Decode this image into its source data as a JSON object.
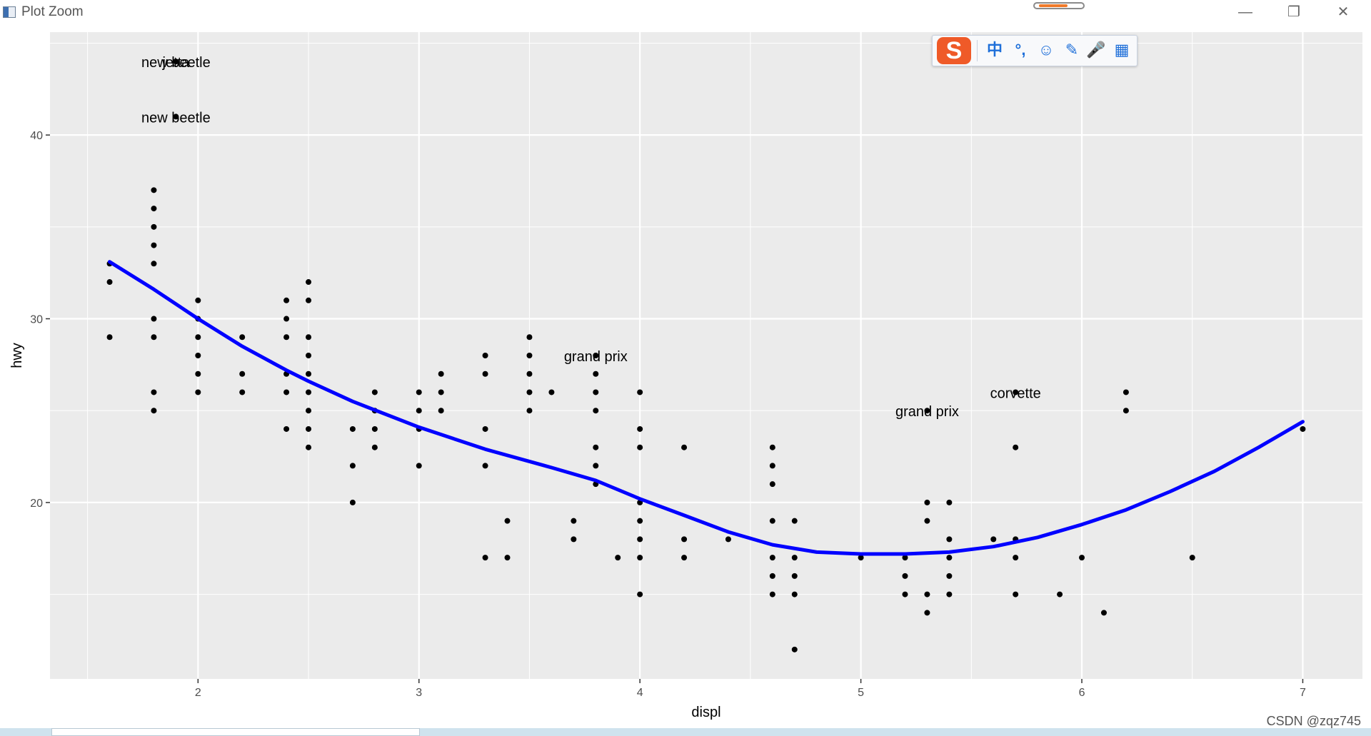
{
  "window": {
    "title": "Plot Zoom",
    "minimize_icon": "minimize-icon",
    "restore_icon": "restore-icon",
    "close_icon": "close-icon"
  },
  "ime_toolbar": {
    "logo": "S",
    "items": [
      "中",
      "°,",
      "☺",
      "✎",
      "🎤",
      "▦"
    ]
  },
  "watermark": "CSDN @zqz745",
  "chart_data": {
    "type": "scatter",
    "title": "",
    "xlabel": "displ",
    "ylabel": "hwy",
    "xlim": [
      1.33,
      7.27
    ],
    "ylim": [
      10.4,
      45.6
    ],
    "x_ticks": [
      2,
      3,
      4,
      5,
      6,
      7
    ],
    "y_ticks": [
      20,
      30,
      40
    ],
    "grid": true,
    "legend": "none",
    "colors": {
      "panel": "#ebebeb",
      "grid": "#ffffff",
      "point": "#000000",
      "smooth": "#0000ff"
    },
    "points": [
      [
        1.6,
        33
      ],
      [
        1.6,
        32
      ],
      [
        1.6,
        29
      ],
      [
        1.8,
        37
      ],
      [
        1.8,
        36
      ],
      [
        1.8,
        35
      ],
      [
        1.8,
        34
      ],
      [
        1.8,
        33
      ],
      [
        1.8,
        30
      ],
      [
        1.8,
        29
      ],
      [
        1.8,
        26
      ],
      [
        1.8,
        25
      ],
      [
        1.9,
        44
      ],
      [
        1.9,
        41
      ],
      [
        2.0,
        31
      ],
      [
        2.0,
        30
      ],
      [
        2.0,
        29
      ],
      [
        2.0,
        28
      ],
      [
        2.0,
        27
      ],
      [
        2.0,
        26
      ],
      [
        2.2,
        29
      ],
      [
        2.2,
        27
      ],
      [
        2.2,
        26
      ],
      [
        2.4,
        31
      ],
      [
        2.4,
        30
      ],
      [
        2.4,
        29
      ],
      [
        2.4,
        27
      ],
      [
        2.4,
        26
      ],
      [
        2.4,
        24
      ],
      [
        2.5,
        32
      ],
      [
        2.5,
        31
      ],
      [
        2.5,
        29
      ],
      [
        2.5,
        28
      ],
      [
        2.5,
        27
      ],
      [
        2.5,
        26
      ],
      [
        2.5,
        25
      ],
      [
        2.5,
        24
      ],
      [
        2.5,
        23
      ],
      [
        2.7,
        24
      ],
      [
        2.7,
        22
      ],
      [
        2.7,
        20
      ],
      [
        2.8,
        26
      ],
      [
        2.8,
        25
      ],
      [
        2.8,
        24
      ],
      [
        2.8,
        23
      ],
      [
        3.0,
        26
      ],
      [
        3.0,
        25
      ],
      [
        3.0,
        24
      ],
      [
        3.0,
        22
      ],
      [
        3.1,
        27
      ],
      [
        3.1,
        26
      ],
      [
        3.1,
        25
      ],
      [
        3.3,
        28
      ],
      [
        3.3,
        27
      ],
      [
        3.3,
        24
      ],
      [
        3.3,
        22
      ],
      [
        3.3,
        17
      ],
      [
        3.4,
        19
      ],
      [
        3.4,
        17
      ],
      [
        3.5,
        29
      ],
      [
        3.5,
        28
      ],
      [
        3.5,
        27
      ],
      [
        3.5,
        26
      ],
      [
        3.5,
        25
      ],
      [
        3.6,
        26
      ],
      [
        3.7,
        19
      ],
      [
        3.7,
        18
      ],
      [
        3.8,
        28
      ],
      [
        3.8,
        27
      ],
      [
        3.8,
        26
      ],
      [
        3.8,
        25
      ],
      [
        3.8,
        23
      ],
      [
        3.8,
        22
      ],
      [
        3.8,
        21
      ],
      [
        3.9,
        17
      ],
      [
        4.0,
        26
      ],
      [
        4.0,
        24
      ],
      [
        4.0,
        23
      ],
      [
        4.0,
        20
      ],
      [
        4.0,
        19
      ],
      [
        4.0,
        18
      ],
      [
        4.0,
        17
      ],
      [
        4.0,
        15
      ],
      [
        4.2,
        23
      ],
      [
        4.2,
        18
      ],
      [
        4.2,
        17
      ],
      [
        4.4,
        18
      ],
      [
        4.6,
        23
      ],
      [
        4.6,
        22
      ],
      [
        4.6,
        21
      ],
      [
        4.6,
        19
      ],
      [
        4.6,
        17
      ],
      [
        4.6,
        16
      ],
      [
        4.6,
        15
      ],
      [
        4.7,
        19
      ],
      [
        4.7,
        17
      ],
      [
        4.7,
        16
      ],
      [
        4.7,
        15
      ],
      [
        4.7,
        12
      ],
      [
        5.0,
        17
      ],
      [
        5.2,
        17
      ],
      [
        5.2,
        16
      ],
      [
        5.2,
        15
      ],
      [
        5.3,
        25
      ],
      [
        5.3,
        20
      ],
      [
        5.3,
        19
      ],
      [
        5.3,
        15
      ],
      [
        5.3,
        14
      ],
      [
        5.4,
        20
      ],
      [
        5.4,
        18
      ],
      [
        5.4,
        17
      ],
      [
        5.4,
        16
      ],
      [
        5.4,
        15
      ],
      [
        5.6,
        18
      ],
      [
        5.7,
        26
      ],
      [
        5.7,
        23
      ],
      [
        5.7,
        18
      ],
      [
        5.7,
        17
      ],
      [
        5.7,
        15
      ],
      [
        5.9,
        15
      ],
      [
        6.0,
        17
      ],
      [
        6.1,
        14
      ],
      [
        6.2,
        26
      ],
      [
        6.2,
        25
      ],
      [
        6.5,
        17
      ],
      [
        7.0,
        24
      ]
    ],
    "smooth": [
      [
        1.6,
        33.1
      ],
      [
        1.8,
        31.6
      ],
      [
        2.0,
        30.0
      ],
      [
        2.2,
        28.5
      ],
      [
        2.4,
        27.2
      ],
      [
        2.5,
        26.6
      ],
      [
        2.7,
        25.5
      ],
      [
        3.0,
        24.1
      ],
      [
        3.3,
        22.9
      ],
      [
        3.6,
        21.9
      ],
      [
        3.8,
        21.2
      ],
      [
        4.0,
        20.2
      ],
      [
        4.2,
        19.3
      ],
      [
        4.4,
        18.4
      ],
      [
        4.6,
        17.7
      ],
      [
        4.8,
        17.3
      ],
      [
        5.0,
        17.2
      ],
      [
        5.2,
        17.2
      ],
      [
        5.4,
        17.3
      ],
      [
        5.6,
        17.6
      ],
      [
        5.8,
        18.1
      ],
      [
        6.0,
        18.8
      ],
      [
        6.2,
        19.6
      ],
      [
        6.4,
        20.6
      ],
      [
        6.6,
        21.7
      ],
      [
        6.8,
        23.0
      ],
      [
        7.0,
        24.4
      ]
    ],
    "annotations": [
      {
        "label": "new beetle",
        "x": 1.9,
        "y": 44
      },
      {
        "label": "jetta",
        "x": 1.9,
        "y": 44
      },
      {
        "label": "new beetle",
        "x": 1.9,
        "y": 41
      },
      {
        "label": "grand prix",
        "x": 3.8,
        "y": 28
      },
      {
        "label": "corvette",
        "x": 5.7,
        "y": 26
      },
      {
        "label": "grand prix",
        "x": 5.3,
        "y": 25
      }
    ]
  }
}
